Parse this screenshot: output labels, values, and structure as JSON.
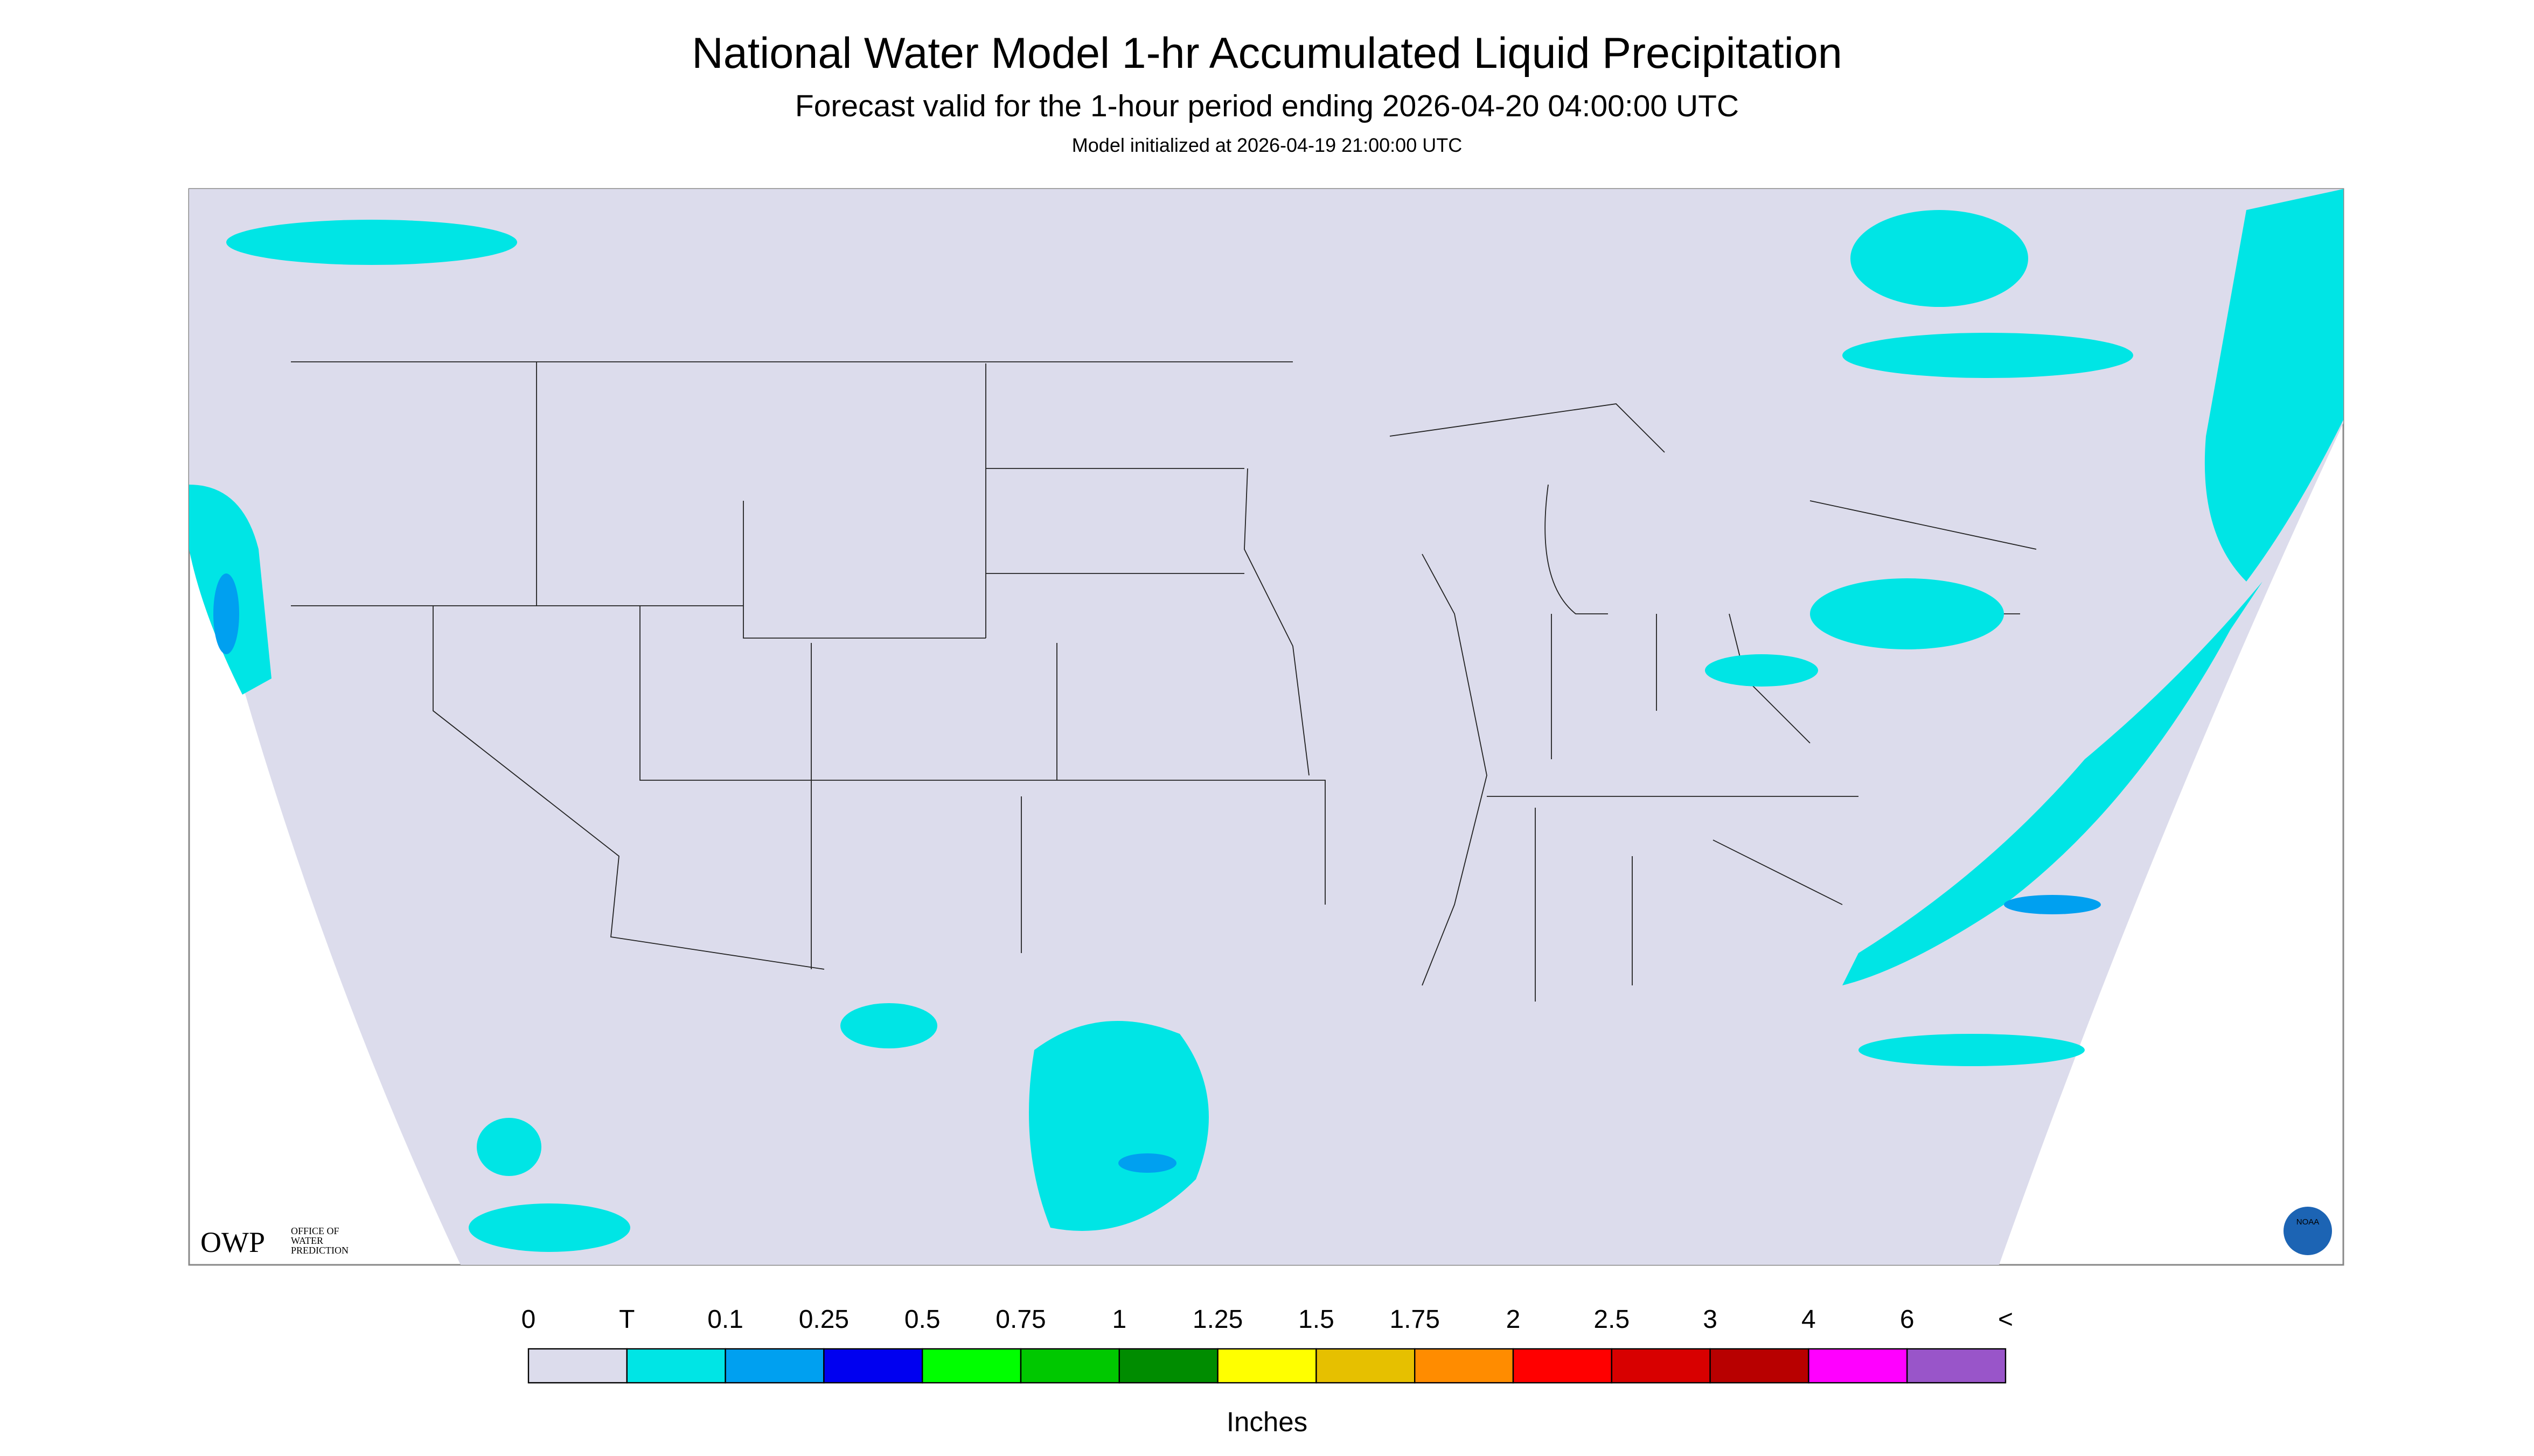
{
  "header": {
    "title": "National Water Model 1-hr Accumulated Liquid Precipitation",
    "subtitle": "Forecast valid for the 1-hour period ending 2026-04-20 04:00:00 UTC",
    "note": "Model initialized at 2026-04-19 21:00:00 UTC"
  },
  "logos": {
    "owp": "OWP",
    "owp_text": [
      "OFFICE OF",
      "WATER",
      "PREDICTION"
    ],
    "noaa": "NOAA"
  },
  "legend": {
    "labels": [
      "0",
      "T",
      "0.1",
      "0.25",
      "0.5",
      "0.75",
      "1",
      "1.25",
      "1.5",
      "1.75",
      "2",
      "2.5",
      "3",
      "4",
      "6",
      "<"
    ],
    "colors": [
      "#dcdcec",
      "#00e5e5",
      "#00a0f0",
      "#0000f0",
      "#00ff00",
      "#00c800",
      "#008c00",
      "#ffff00",
      "#e6c000",
      "#ff8c00",
      "#ff0000",
      "#d80000",
      "#b80000",
      "#ff00ff",
      "#9955c9"
    ],
    "units": "Inches"
  }
}
